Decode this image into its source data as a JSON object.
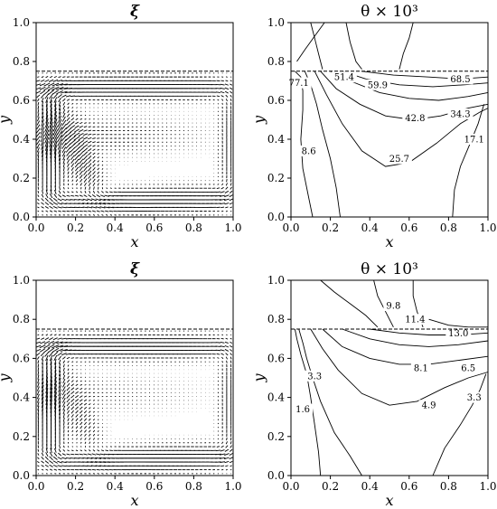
{
  "chart_data": [
    {
      "type": "quiver",
      "panel": "top-left",
      "title": "ξ",
      "xlabel": "x",
      "ylabel": "y",
      "xlim": [
        0.0,
        1.0
      ],
      "ylim": [
        0.0,
        1.0
      ],
      "xticks": [
        "0.0",
        "0.2",
        "0.4",
        "0.6",
        "0.8",
        "1.0"
      ],
      "yticks": [
        "0.0",
        "0.2",
        "0.4",
        "0.6",
        "0.8",
        "1.0"
      ],
      "interface_y": 0.75
    },
    {
      "type": "contour",
      "panel": "top-right",
      "title": "θ × 10³",
      "xlabel": "x",
      "ylabel": "y",
      "xlim": [
        0.0,
        1.0
      ],
      "ylim": [
        0.0,
        1.0
      ],
      "xticks": [
        "0.0",
        "0.2",
        "0.4",
        "0.6",
        "0.8",
        "1.0"
      ],
      "yticks": [
        "0.0",
        "0.2",
        "0.4",
        "0.6",
        "0.8",
        "1.0"
      ],
      "interface_y": 0.75,
      "contour_labels": [
        {
          "text": "51.4",
          "x": 0.27,
          "y": 0.72
        },
        {
          "text": "59.9",
          "x": 0.44,
          "y": 0.68
        },
        {
          "text": "68.5",
          "x": 0.86,
          "y": 0.71
        },
        {
          "text": "42.8",
          "x": 0.63,
          "y": 0.51
        },
        {
          "text": "34.3",
          "x": 0.86,
          "y": 0.53
        },
        {
          "text": "25.7",
          "x": 0.55,
          "y": 0.3
        },
        {
          "text": "17.1",
          "x": 0.93,
          "y": 0.4
        },
        {
          "text": "8.6",
          "x": 0.09,
          "y": 0.34
        },
        {
          "text": "77.1",
          "x": 0.04,
          "y": 0.69
        }
      ]
    },
    {
      "type": "quiver",
      "panel": "bottom-left",
      "title": "ξ",
      "xlabel": "x",
      "ylabel": "y",
      "xlim": [
        0.0,
        1.0
      ],
      "ylim": [
        0.0,
        1.0
      ],
      "xticks": [
        "0.0",
        "0.2",
        "0.4",
        "0.6",
        "0.8",
        "1.0"
      ],
      "yticks": [
        "0.0",
        "0.2",
        "0.4",
        "0.6",
        "0.8",
        "1.0"
      ],
      "interface_y": 0.75
    },
    {
      "type": "contour",
      "panel": "bottom-right",
      "title": "θ × 10³",
      "xlabel": "x",
      "ylabel": "y",
      "xlim": [
        0.0,
        1.0
      ],
      "ylim": [
        0.0,
        1.0
      ],
      "xticks": [
        "0.0",
        "0.2",
        "0.4",
        "0.6",
        "0.8",
        "1.0"
      ],
      "yticks": [
        "0.0",
        "0.2",
        "0.4",
        "0.6",
        "0.8",
        "1.0"
      ],
      "interface_y": 0.75,
      "contour_labels": [
        {
          "text": "9.8",
          "x": 0.52,
          "y": 0.87
        },
        {
          "text": "11.4",
          "x": 0.63,
          "y": 0.8
        },
        {
          "text": "13.0",
          "x": 0.85,
          "y": 0.73
        },
        {
          "text": "8.1",
          "x": 0.66,
          "y": 0.55
        },
        {
          "text": "6.5",
          "x": 0.9,
          "y": 0.55
        },
        {
          "text": "4.9",
          "x": 0.7,
          "y": 0.36
        },
        {
          "text": "3.3",
          "x": 0.93,
          "y": 0.4
        },
        {
          "text": "3.3",
          "x": 0.12,
          "y": 0.51
        },
        {
          "text": "1.6",
          "x": 0.06,
          "y": 0.34
        }
      ]
    }
  ]
}
